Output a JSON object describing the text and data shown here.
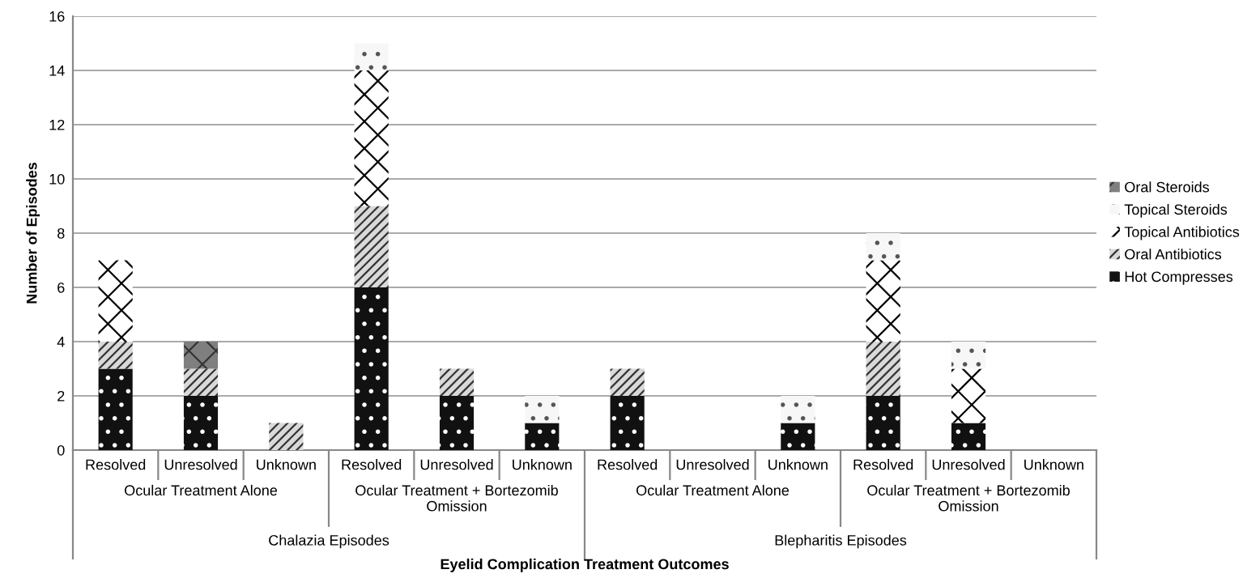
{
  "chart_data": {
    "type": "bar",
    "stacked": true,
    "ylabel": "Number of Episodes",
    "categories": [
      "Resolved",
      "Unresolved",
      "Unknown",
      "Resolved",
      "Unresolved",
      "Unknown",
      "Resolved",
      "Unresolved",
      "Unknown",
      "Resolved",
      "Unresolved",
      "Unknown"
    ],
    "series": [
      {
        "name": "Hot Compresses",
        "color": "#111111",
        "values": [
          3,
          2,
          0,
          6,
          2,
          1,
          2,
          0,
          1,
          2,
          1,
          0
        ]
      },
      {
        "name": "Oral Antibiotics",
        "color": "#d9d9d9",
        "values": [
          1,
          1,
          1,
          3,
          1,
          0,
          1,
          0,
          0,
          2,
          0,
          0
        ]
      },
      {
        "name": "Topical Antibiotics",
        "color": "#ffffff",
        "values": [
          3,
          0,
          0,
          5,
          0,
          0,
          0,
          0,
          0,
          3,
          2,
          0
        ]
      },
      {
        "name": "Topical Steroids",
        "color": "#f7f7f7",
        "values": [
          0,
          0,
          0,
          1,
          0,
          1,
          0,
          0,
          1,
          1,
          1,
          0
        ]
      },
      {
        "name": "Oral Steroids",
        "color": "#7f7f7f",
        "values": [
          0,
          1,
          0,
          0,
          0,
          0,
          0,
          0,
          0,
          0,
          0,
          0
        ]
      }
    ],
    "annotations": [
      "Ocular Treatment Alone",
      "Ocular Treatment + Bortezomib Omission",
      "Ocular Treatment Alone",
      "Ocular Treatment + Bortezomib Omission",
      "Chalazia Episodes",
      "Blepharitis Episodes",
      "Eyelid Complication Treatment Outcomes"
    ],
    "ylim": [
      0,
      16
    ],
    "yticks": [
      0,
      2,
      4,
      6,
      8,
      10,
      12,
      14,
      16
    ],
    "grid": "y",
    "legend": "right"
  }
}
